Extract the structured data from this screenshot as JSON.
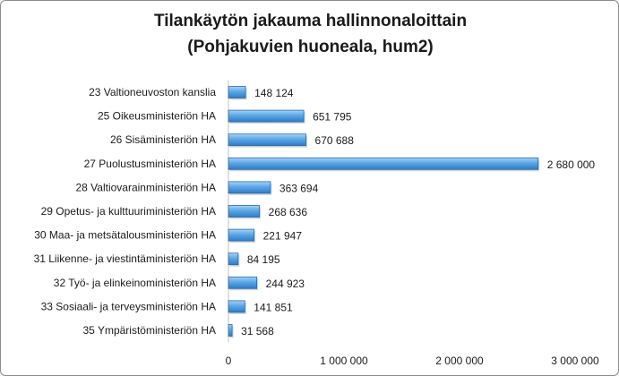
{
  "chart_data": {
    "type": "bar",
    "orientation": "horizontal",
    "title_lines": [
      "Tilankäytön jakauma hallinnonaloittain",
      "(Pohjakuvien huoneala, hum2)"
    ],
    "categories": [
      "23 Valtioneuvoston kanslia",
      "25 Oikeusministeriön HA",
      "26 Sisäministeriön HA",
      "27 Puolustusministeriön HA",
      "28 Valtiovarainministeriön HA",
      "29 Opetus- ja kulttuuriministeriön HA",
      "30 Maa- ja metsätalousministeriön HA",
      "31 Liikenne- ja viestintäministeriön HA",
      "32 Työ- ja elinkeinoministeriön HA",
      "33 Sosiaali- ja terveysministeriön HA",
      "35 Ympäristöministeriön HA"
    ],
    "values": [
      148124,
      651795,
      670688,
      2680000,
      363694,
      268636,
      221947,
      84195,
      244923,
      141851,
      31568
    ],
    "value_labels": [
      "148 124",
      "651 795",
      "670 688",
      "2 680 000",
      "363 694",
      "268 636",
      "221 947",
      "84 195",
      "244 923",
      "141 851",
      "31 568"
    ],
    "xlim": [
      0,
      3000000
    ],
    "x_ticks": [
      0,
      1000000,
      2000000,
      3000000
    ],
    "x_tick_labels": [
      "0",
      "1 000 000",
      "2 000 000",
      "3 000 000"
    ],
    "bar_color": "#4a9be0",
    "bar_edge_color": "#2a6aa8",
    "grid": false,
    "legend": false
  }
}
